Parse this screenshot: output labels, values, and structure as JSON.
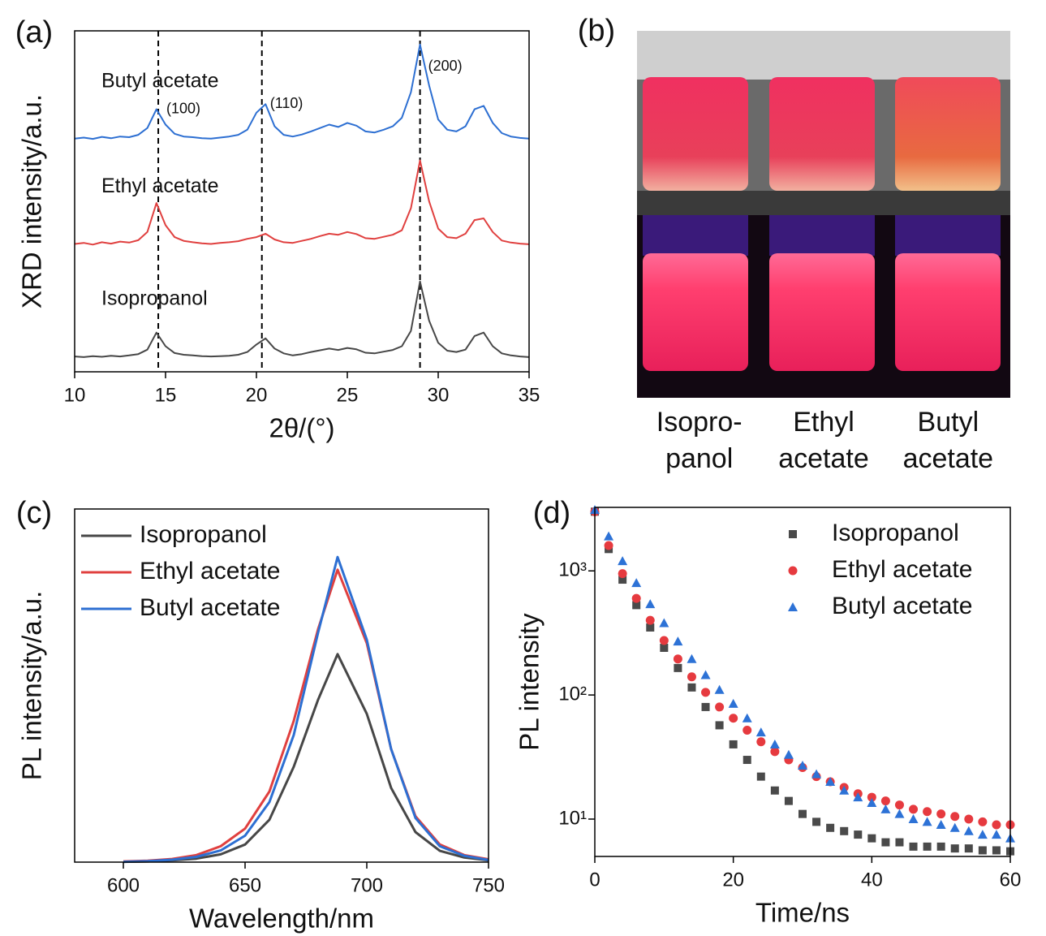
{
  "chart_data": [
    {
      "type": "line",
      "panel_label": "(a)",
      "xlabel": "2θ/(°)",
      "ylabel": "XRD intensity/a.u.",
      "xlim": [
        10,
        35
      ],
      "ylim": [
        0,
        100
      ],
      "xticks": [
        10,
        15,
        20,
        25,
        30,
        35
      ],
      "series_labels": "inline",
      "reference_lines": [
        14.6,
        20.3,
        29.0
      ],
      "reference_line_labels": [
        "(100)",
        "(110)",
        "(200)"
      ],
      "x": [
        10,
        10.5,
        11,
        11.5,
        12,
        12.5,
        13,
        13.5,
        14,
        14.5,
        15,
        15.5,
        16,
        16.5,
        17,
        17.5,
        18,
        18.5,
        19,
        19.5,
        20,
        20.5,
        21,
        21.5,
        22,
        22.5,
        23,
        23.5,
        24,
        24.5,
        25,
        25.5,
        26,
        26.5,
        27,
        27.5,
        28,
        28.5,
        29,
        29.5,
        30,
        30.5,
        31,
        31.5,
        32,
        32.5,
        33,
        33.5,
        34,
        34.5,
        35
      ],
      "series": [
        {
          "name": "Isopropanol",
          "color": "#474747",
          "values": [
            4.5,
            4.3,
            4.6,
            4.4,
            4.7,
            4.5,
            4.8,
            5.2,
            6.5,
            11.5,
            7.5,
            5.5,
            5.0,
            4.8,
            4.6,
            4.5,
            4.6,
            4.7,
            5.0,
            5.8,
            8.0,
            9.8,
            6.8,
            5.4,
            4.8,
            5.2,
            5.8,
            6.3,
            6.8,
            6.4,
            7.0,
            6.6,
            5.6,
            5.4,
            5.9,
            6.4,
            7.5,
            12,
            26.5,
            15,
            8.5,
            6.2,
            5.8,
            6.5,
            10.5,
            11.5,
            7.5,
            5.4,
            4.8,
            4.5,
            4.3
          ]
        },
        {
          "name": "Ethyl acetate",
          "color": "#e0403f",
          "values": [
            37.5,
            37.8,
            37.3,
            38.0,
            37.6,
            38.2,
            37.9,
            38.6,
            41,
            49.5,
            43,
            39.5,
            38.4,
            38.0,
            37.7,
            37.5,
            37.8,
            38.0,
            38.3,
            39.0,
            39.5,
            40.5,
            38.8,
            38.0,
            37.8,
            38.4,
            39.0,
            39.8,
            40.5,
            40.2,
            41.0,
            40.4,
            39.2,
            39.0,
            39.6,
            40.2,
            41.5,
            48,
            62,
            50,
            42,
            39.5,
            39.2,
            40.5,
            44.5,
            45,
            41.0,
            38.5,
            37.9,
            37.6,
            37.4
          ]
        },
        {
          "name": "Butyl acetate",
          "color": "#2d6fd2",
          "values": [
            68.4,
            68.7,
            68.3,
            68.9,
            68.5,
            69.0,
            68.8,
            69.5,
            71.5,
            77,
            72.5,
            69.8,
            69.0,
            68.8,
            68.5,
            68.4,
            68.7,
            69.0,
            69.5,
            71,
            76,
            78.5,
            72,
            69.5,
            69.0,
            69.6,
            70.5,
            71.5,
            72.5,
            71.8,
            73,
            72.2,
            70.5,
            70.2,
            71,
            72,
            74.5,
            82,
            96,
            84,
            74,
            71,
            70.5,
            72,
            77,
            78,
            73,
            70,
            69,
            68.6,
            68.4
          ]
        }
      ]
    },
    {
      "type": "photo",
      "panel_label": "(b)",
      "labels": [
        [
          "Isopro-",
          "panol"
        ],
        [
          "Ethyl",
          "acetate"
        ],
        [
          "Butyl",
          "acetate"
        ]
      ]
    },
    {
      "type": "line",
      "panel_label": "(c)",
      "xlabel": "Wavelength/nm",
      "ylabel": "PL intensity/a.u.",
      "xlim": [
        580,
        750
      ],
      "ylim": [
        0,
        100
      ],
      "xticks": [
        600,
        650,
        700,
        750
      ],
      "legend": "upper left",
      "x": [
        600,
        610,
        620,
        630,
        640,
        650,
        660,
        670,
        680,
        688,
        700,
        710,
        720,
        730,
        740,
        750
      ],
      "series": [
        {
          "name": "Isopropanol",
          "color": "#474747",
          "values": [
            0.1,
            0.2,
            0.5,
            1.0,
            2.2,
            5,
            12,
            27,
            46,
            58.9,
            42,
            21,
            8.5,
            3.2,
            1.3,
            0.5
          ]
        },
        {
          "name": "Ethyl acetate",
          "color": "#e0403f",
          "values": [
            0.2,
            0.4,
            0.9,
            2.0,
            4.5,
            9.5,
            20,
            40,
            66,
            82.8,
            62,
            32,
            13,
            5,
            2,
            0.8
          ]
        },
        {
          "name": "Butyl acetate",
          "color": "#2d6fd2",
          "values": [
            0.1,
            0.3,
            0.7,
            1.5,
            3.3,
            7.5,
            17,
            36,
            65,
            86.4,
            63,
            32,
            12.5,
            4.5,
            1.8,
            0.6
          ]
        }
      ]
    },
    {
      "type": "scatter",
      "panel_label": "(d)",
      "xlabel": "Time/ns",
      "ylabel": "PL intensity",
      "xlim": [
        0,
        60
      ],
      "ylim": [
        5,
        3250
      ],
      "ylog": true,
      "xticks": [
        0,
        20,
        40,
        60
      ],
      "yticks": [
        {
          "value": 10,
          "label": "10¹"
        },
        {
          "value": 100,
          "label": "10²"
        },
        {
          "value": 1000,
          "label": "10³"
        }
      ],
      "legend": "upper right",
      "x": [
        0,
        2,
        4,
        6,
        8,
        10,
        12,
        14,
        16,
        18,
        20,
        22,
        24,
        26,
        28,
        30,
        32,
        34,
        36,
        38,
        40,
        42,
        44,
        46,
        48,
        50,
        52,
        54,
        56,
        58,
        60
      ],
      "series": [
        {
          "name": "Isopropanol",
          "color": "#4a4a4a",
          "marker": "square",
          "values": [
            3000,
            1500,
            850,
            530,
            350,
            240,
            165,
            115,
            80,
            57,
            40,
            30,
            22,
            17,
            14,
            11,
            9.5,
            8.5,
            8,
            7.5,
            7,
            6.5,
            6.5,
            6,
            6,
            6,
            5.8,
            5.8,
            5.6,
            5.6,
            5.5
          ]
        },
        {
          "name": "Ethyl acetate",
          "color": "#e63a3f",
          "marker": "circle",
          "values": [
            3000,
            1600,
            950,
            600,
            400,
            275,
            195,
            140,
            105,
            80,
            65,
            52,
            42,
            35,
            30,
            26,
            22,
            20,
            18,
            16,
            15,
            14,
            13,
            12,
            11.5,
            11,
            10.5,
            10,
            9.5,
            9,
            9
          ]
        },
        {
          "name": "Butyl acetate",
          "color": "#2d72d6",
          "marker": "triangle",
          "values": [
            3100,
            1900,
            1200,
            800,
            540,
            380,
            270,
            195,
            145,
            110,
            85,
            65,
            50,
            40,
            33,
            27,
            23,
            20,
            17,
            15,
            13.5,
            12,
            11,
            10,
            9.5,
            9,
            8.5,
            8,
            7.5,
            7.5,
            7
          ]
        }
      ]
    }
  ]
}
